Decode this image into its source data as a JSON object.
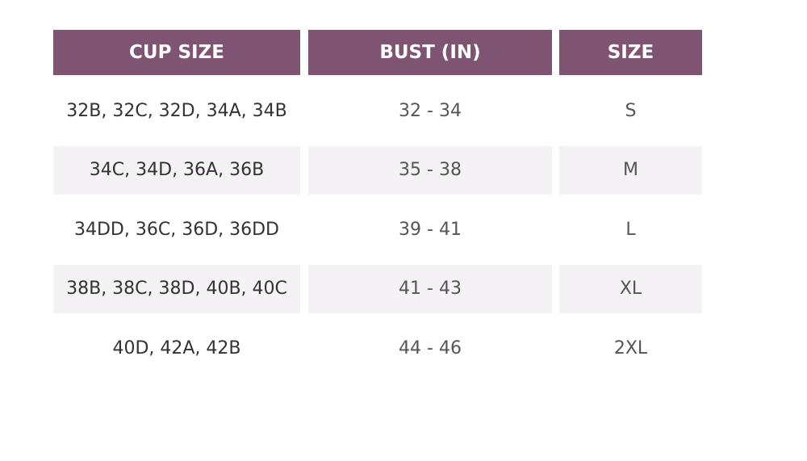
{
  "table": {
    "headers": [
      "CUP SIZE",
      "BUST (IN)",
      "SIZE"
    ],
    "rows": [
      [
        "32B, 32C, 32D, 34A, 34B",
        "32 - 34",
        "S"
      ],
      [
        "34C, 34D, 36A, 36B",
        "35 - 38",
        "M"
      ],
      [
        "34DD, 36C, 36D, 36DD",
        "39 - 41",
        "L"
      ],
      [
        "38B, 38C, 38D, 40B, 40C",
        "41 - 43",
        "XL"
      ],
      [
        "40D, 42A, 42B",
        "44 - 46",
        "2XL"
      ]
    ]
  }
}
